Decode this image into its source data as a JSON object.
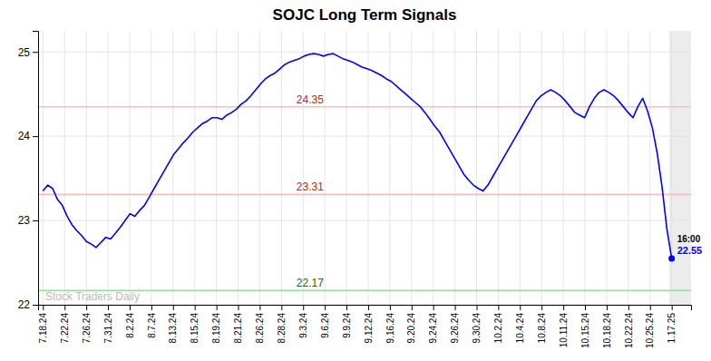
{
  "chart_data": {
    "type": "line",
    "title": "SOJC Long Term Signals",
    "color": "blue",
    "values": [
      23.35,
      23.42,
      23.38,
      23.25,
      23.18,
      23.05,
      22.95,
      22.88,
      22.82,
      22.75,
      22.72,
      22.68,
      22.74,
      22.8,
      22.78,
      22.85,
      22.92,
      23.0,
      23.08,
      23.05,
      23.12,
      23.18,
      23.28,
      23.38,
      23.48,
      23.58,
      23.68,
      23.78,
      23.85,
      23.92,
      23.98,
      24.05,
      24.1,
      24.15,
      24.18,
      24.22,
      24.22,
      24.2,
      24.25,
      24.28,
      24.32,
      24.38,
      24.42,
      24.48,
      24.55,
      24.62,
      24.68,
      24.72,
      24.75,
      24.8,
      24.85,
      24.88,
      24.9,
      24.92,
      24.95,
      24.97,
      24.98,
      24.97,
      24.95,
      24.97,
      24.98,
      24.95,
      24.92,
      24.9,
      24.88,
      24.85,
      24.82,
      24.8,
      24.78,
      24.75,
      24.72,
      24.68,
      24.65,
      24.6,
      24.55,
      24.5,
      24.45,
      24.4,
      24.35,
      24.28,
      24.2,
      24.12,
      24.05,
      23.95,
      23.85,
      23.75,
      23.65,
      23.55,
      23.48,
      23.42,
      23.38,
      23.35,
      23.42,
      23.52,
      23.62,
      23.72,
      23.82,
      23.92,
      24.02,
      24.12,
      24.22,
      24.32,
      24.42,
      24.48,
      24.52,
      24.55,
      24.52,
      24.48,
      24.42,
      24.35,
      24.28,
      24.25,
      24.22,
      24.35,
      24.45,
      24.52,
      24.55,
      24.52,
      24.48,
      24.42,
      24.35,
      24.28,
      24.22,
      24.35,
      24.45,
      24.3,
      24.1,
      23.8,
      23.4,
      22.9,
      22.55
    ],
    "xlim": [
      -1,
      134
    ],
    "xticks": [
      {
        "value": 0,
        "label": "7.18.24"
      },
      {
        "value": 4.48275862,
        "label": "7.22.24"
      },
      {
        "value": 8.96551724,
        "label": "7.26.24"
      },
      {
        "value": 13.44827586,
        "label": "7.31.24"
      },
      {
        "value": 17.93103448,
        "label": "8.2.24"
      },
      {
        "value": 22.4137931,
        "label": "8.7.24"
      },
      {
        "value": 26.89655172,
        "label": "8.13.24"
      },
      {
        "value": 31.37931034,
        "label": "8.15.24"
      },
      {
        "value": 35.86206897,
        "label": "8.19.24"
      },
      {
        "value": 40.34482759,
        "label": "8.21.24"
      },
      {
        "value": 44.82758621,
        "label": "8.26.24"
      },
      {
        "value": 49.31034483,
        "label": "8.28.24"
      },
      {
        "value": 53.79310345,
        "label": "9.3.24"
      },
      {
        "value": 58.27586207,
        "label": "9.6.24"
      },
      {
        "value": 62.75862069,
        "label": "9.9.24"
      },
      {
        "value": 67.24137931,
        "label": "9.12.24"
      },
      {
        "value": 71.72413793,
        "label": "9.16.24"
      },
      {
        "value": 76.20689655,
        "label": "9.20.24"
      },
      {
        "value": 80.68965517,
        "label": "9.24.24"
      },
      {
        "value": 85.17241379,
        "label": "9.26.24"
      },
      {
        "value": 89.65517241,
        "label": "9.30.24"
      },
      {
        "value": 94.13793103,
        "label": "10.2.24"
      },
      {
        "value": 98.62068966,
        "label": "10.4.24"
      },
      {
        "value": 103.10344828,
        "label": "10.8.24"
      },
      {
        "value": 107.5862069,
        "label": "10.11.24"
      },
      {
        "value": 112.06896552,
        "label": "10.15.24"
      },
      {
        "value": 116.55172414,
        "label": "10.18.24"
      },
      {
        "value": 121.03448276,
        "label": "10.22.24"
      },
      {
        "value": 125.51724138,
        "label": "10.25.24"
      },
      {
        "value": 130,
        "label": "1.17.25"
      }
    ],
    "ylim": [
      22.0,
      25.25
    ],
    "yticks": [
      22,
      23,
      24,
      25
    ],
    "grid": true,
    "hlines": [
      {
        "y": 24.35,
        "color": "#ffbbbb",
        "label": "24.35",
        "label_color": "#cc2200"
      },
      {
        "y": 23.31,
        "color": "#ffbbbb",
        "label": "23.31",
        "label_color": "#cc2200"
      },
      {
        "y": 22.17,
        "color": "#99dd99",
        "label": "22.17",
        "label_color": "#007700"
      }
    ],
    "watermark": "Stock Traders Daily",
    "endpoint_labels": [
      "16:00",
      "22.55"
    ]
  }
}
